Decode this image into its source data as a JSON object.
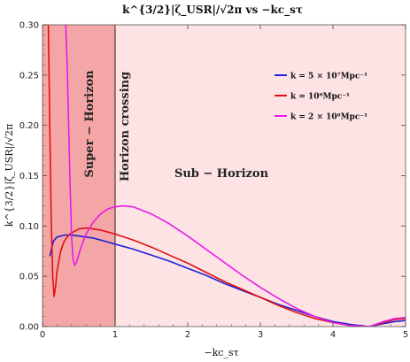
{
  "chart_data": {
    "type": "line",
    "title": "k^{3/2}|ζ_USR|/√2π vs −kc_sτ",
    "xlabel": "−kc_sτ",
    "ylabel": "k^{3/2}|ζ_USR|/√2π",
    "xlim": [
      0,
      5
    ],
    "ylim": [
      0,
      0.3
    ],
    "xticks": [
      "0",
      "1",
      "2",
      "3",
      "4",
      "5"
    ],
    "yticks": [
      "0.00",
      "0.05",
      "0.10",
      "0.15",
      "0.20",
      "0.25",
      "0.30"
    ],
    "grid": false,
    "legend_position": "top-right",
    "regions": [
      {
        "label": "Super − Horizon",
        "x_range": [
          0,
          1
        ],
        "color": "#f4a6a6"
      },
      {
        "label": "Sub − Horizon",
        "x_range": [
          1,
          5
        ],
        "color": "#fde3e3"
      }
    ],
    "vline": {
      "x": 1,
      "label": "Horizon crossing"
    },
    "series": [
      {
        "name": "k = 5 × 10⁷Mpc⁻¹",
        "color": "#1f1fd6",
        "x": [
          0.1,
          0.15,
          0.2,
          0.3,
          0.4,
          0.5,
          0.6,
          0.7,
          0.8,
          0.9,
          1.0,
          1.25,
          1.5,
          1.75,
          2.0,
          2.25,
          2.5,
          2.75,
          3.0,
          3.25,
          3.5,
          3.75,
          4.0,
          4.25,
          4.5,
          4.7,
          4.85,
          5.0
        ],
        "y": [
          0.07,
          0.085,
          0.089,
          0.091,
          0.091,
          0.09,
          0.089,
          0.088,
          0.086,
          0.084,
          0.082,
          0.077,
          0.071,
          0.065,
          0.058,
          0.051,
          0.043,
          0.036,
          0.029,
          0.022,
          0.016,
          0.01,
          0.005,
          0.002,
          0.0,
          0.003,
          0.005,
          0.006
        ]
      },
      {
        "name": "k = 10⁸Mpc⁻¹",
        "color": "#e01010",
        "x": [
          0.08,
          0.1,
          0.12,
          0.14,
          0.16,
          0.18,
          0.2,
          0.25,
          0.3,
          0.35,
          0.4,
          0.5,
          0.6,
          0.7,
          0.8,
          0.9,
          1.0,
          1.25,
          1.5,
          1.75,
          2.0,
          2.25,
          2.5,
          2.75,
          3.0,
          3.25,
          3.5,
          3.75,
          4.0,
          4.25,
          4.5,
          4.7,
          4.85,
          5.0
        ],
        "y": [
          0.3,
          0.2,
          0.11,
          0.05,
          0.03,
          0.04,
          0.055,
          0.075,
          0.085,
          0.09,
          0.093,
          0.097,
          0.098,
          0.097,
          0.096,
          0.094,
          0.092,
          0.086,
          0.079,
          0.071,
          0.063,
          0.054,
          0.045,
          0.037,
          0.029,
          0.021,
          0.014,
          0.008,
          0.004,
          0.001,
          0.0,
          0.004,
          0.007,
          0.008
        ]
      },
      {
        "name": "k = 2 × 10⁸Mpc⁻¹",
        "color": "#e81ae8",
        "x": [
          0.32,
          0.34,
          0.36,
          0.38,
          0.4,
          0.42,
          0.44,
          0.47,
          0.5,
          0.55,
          0.6,
          0.7,
          0.8,
          0.9,
          1.0,
          1.1,
          1.25,
          1.5,
          1.75,
          2.0,
          2.25,
          2.5,
          2.75,
          3.0,
          3.25,
          3.5,
          3.75,
          4.0,
          4.25,
          4.5,
          4.7,
          4.85,
          5.0
        ],
        "y": [
          0.3,
          0.26,
          0.2,
          0.14,
          0.09,
          0.068,
          0.061,
          0.064,
          0.072,
          0.083,
          0.092,
          0.104,
          0.112,
          0.117,
          0.119,
          0.12,
          0.119,
          0.112,
          0.102,
          0.09,
          0.077,
          0.064,
          0.051,
          0.039,
          0.028,
          0.018,
          0.01,
          0.004,
          0.001,
          0.0,
          0.005,
          0.008,
          0.009
        ]
      }
    ]
  }
}
